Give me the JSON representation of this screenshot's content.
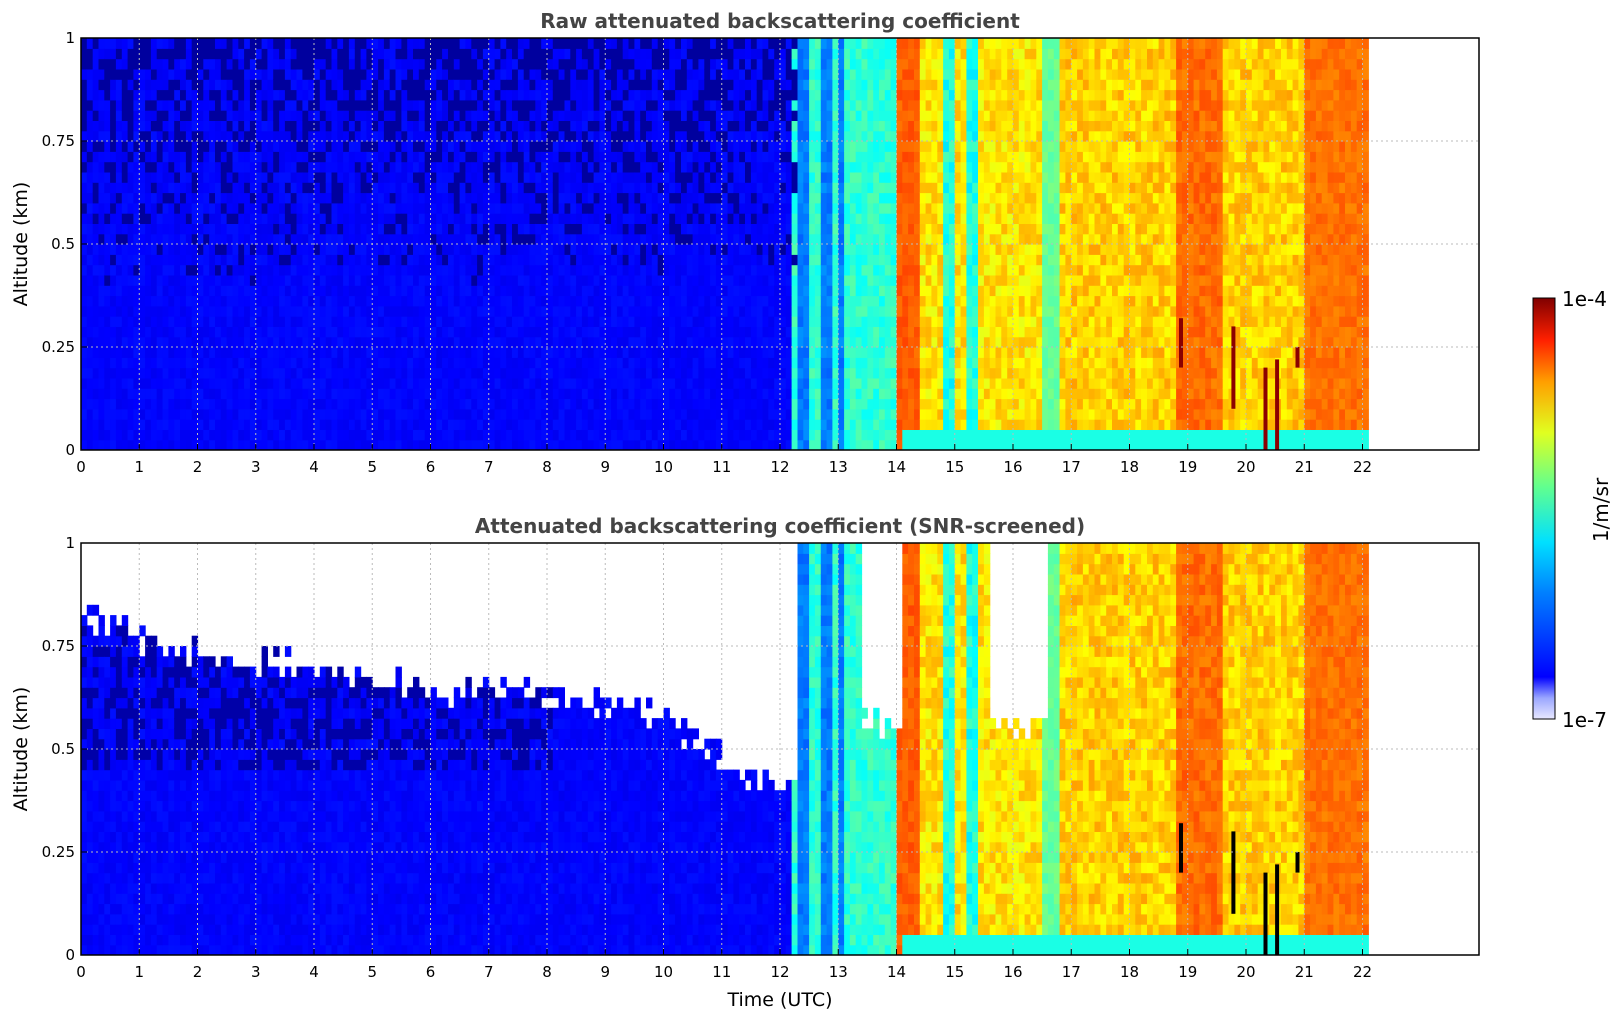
{
  "chart_data": [
    {
      "type": "heatmap",
      "title": "Raw attenuated backscattering coefficient",
      "xlabel": "",
      "ylabel": "Altitude (km)",
      "xlim": [
        0,
        24
      ],
      "ylim": [
        0,
        1
      ],
      "x_ticks": [
        "0",
        "1",
        "2",
        "3",
        "4",
        "5",
        "6",
        "7",
        "8",
        "9",
        "10",
        "11",
        "12",
        "13",
        "14",
        "15",
        "16",
        "17",
        "18",
        "19",
        "20",
        "21",
        "22"
      ],
      "y_ticks": [
        "0",
        "0.25",
        "0.5",
        "0.75",
        "1"
      ],
      "grid": true,
      "color_scale": "log",
      "data_end_time": 22.1,
      "segments": [
        {
          "start": 0.0,
          "end": 12.2,
          "regime": "clear-air, low signal (blue), noisy above 0.4 km"
        },
        {
          "start": 12.2,
          "end": 14.0,
          "regime": "transition with cyan/green vertical streaks"
        },
        {
          "start": 14.0,
          "end": 16.5,
          "regime": "orange/yellow high backscatter with blue streaks"
        },
        {
          "start": 16.5,
          "end": 22.1,
          "regime": "yellow/orange high backscatter, dark red features near 19-21 h"
        }
      ]
    },
    {
      "type": "heatmap",
      "title": "Attenuated backscattering coefficient (SNR-screened)",
      "xlabel": "Time (UTC)",
      "ylabel": "Altitude (km)",
      "xlim": [
        0,
        24
      ],
      "ylim": [
        0,
        1
      ],
      "x_ticks": [
        "0",
        "1",
        "2",
        "3",
        "4",
        "5",
        "6",
        "7",
        "8",
        "9",
        "10",
        "11",
        "12",
        "13",
        "14",
        "15",
        "16",
        "17",
        "18",
        "19",
        "20",
        "21",
        "22"
      ],
      "y_ticks": [
        "0",
        "0.25",
        "0.5",
        "0.75",
        "1"
      ],
      "grid": true,
      "color_scale": "log",
      "data_end_time": 22.1,
      "screened_top_km": [
        {
          "t": 0,
          "h": 0.8
        },
        {
          "t": 2,
          "h": 0.72
        },
        {
          "t": 4,
          "h": 0.68
        },
        {
          "t": 6,
          "h": 0.63
        },
        {
          "t": 8,
          "h": 0.62
        },
        {
          "t": 10,
          "h": 0.57
        },
        {
          "t": 11,
          "h": 0.45
        },
        {
          "t": 12,
          "h": 0.4
        },
        {
          "t": 13.5,
          "h": 0.48
        },
        {
          "t": 16,
          "h": 0.45
        }
      ]
    }
  ],
  "colorbar": {
    "label": "1/m/sr",
    "max_label": "1e-4",
    "min_label": "1e-7",
    "colormap": "jet",
    "scale": "log"
  }
}
